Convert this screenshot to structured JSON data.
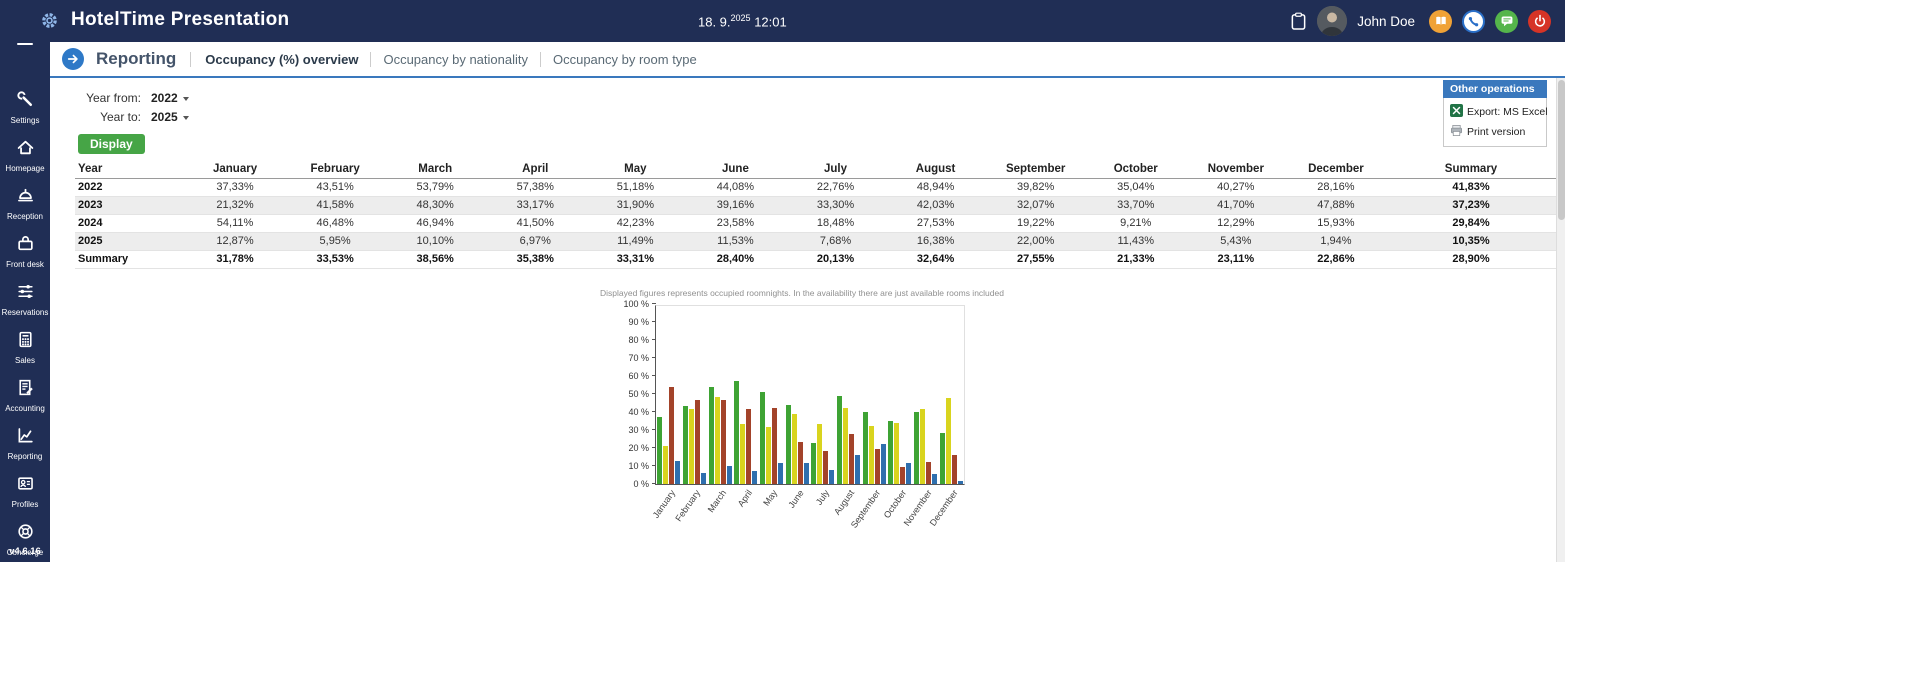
{
  "header": {
    "app_title": "HotelTime Presentation",
    "date_prefix": "18. 9.",
    "date_year": "2025",
    "time": "12:01",
    "user": "John Doe"
  },
  "sidebar": {
    "version": "v4.6.16",
    "items": [
      {
        "label": "Settings",
        "icon": "wrench-icon"
      },
      {
        "label": "Homepage",
        "icon": "house-icon"
      },
      {
        "label": "Reception",
        "icon": "bell-icon"
      },
      {
        "label": "Front desk",
        "icon": "desk-icon"
      },
      {
        "label": "Reservations",
        "icon": "sliders-icon"
      },
      {
        "label": "Sales",
        "icon": "calculator-icon"
      },
      {
        "label": "Accounting",
        "icon": "invoice-icon"
      },
      {
        "label": "Reporting",
        "icon": "chart-icon"
      },
      {
        "label": "Profiles",
        "icon": "profile-card-icon"
      },
      {
        "label": "Concierge",
        "icon": "lifebuoy-icon"
      }
    ]
  },
  "nav": {
    "title": "Reporting",
    "tabs": [
      {
        "label": "Occupancy (%) overview",
        "active": true
      },
      {
        "label": "Occupancy by nationality",
        "active": false
      },
      {
        "label": "Occupancy by room type",
        "active": false
      }
    ]
  },
  "filters": {
    "year_from_label": "Year from:",
    "year_from_value": "2022",
    "year_to_label": "Year to:",
    "year_to_value": "2025",
    "display_button": "Display"
  },
  "operations": {
    "title": "Other operations",
    "export_excel": "Export: MS Excel",
    "print": "Print version"
  },
  "table": {
    "columns": [
      "Year",
      "January",
      "February",
      "March",
      "April",
      "May",
      "June",
      "July",
      "August",
      "September",
      "October",
      "November",
      "December",
      "Summary"
    ],
    "rows": [
      {
        "year": "2022",
        "shaded": false,
        "values": [
          "37,33%",
          "43,51%",
          "53,79%",
          "57,38%",
          "51,18%",
          "44,08%",
          "22,76%",
          "48,94%",
          "39,82%",
          "35,04%",
          "40,27%",
          "28,16%"
        ],
        "summary": "41,83%"
      },
      {
        "year": "2023",
        "shaded": true,
        "values": [
          "21,32%",
          "41,58%",
          "48,30%",
          "33,17%",
          "31,90%",
          "39,16%",
          "33,30%",
          "42,03%",
          "32,07%",
          "33,70%",
          "41,70%",
          "47,88%"
        ],
        "summary": "37,23%"
      },
      {
        "year": "2024",
        "shaded": false,
        "values": [
          "54,11%",
          "46,48%",
          "46,94%",
          "41,50%",
          "42,23%",
          "23,58%",
          "18,48%",
          "27,53%",
          "19,22%",
          "9,21%",
          "12,29%",
          "15,93%"
        ],
        "summary": "29,84%"
      },
      {
        "year": "2025",
        "shaded": true,
        "values": [
          "12,87%",
          "5,95%",
          "10,10%",
          "6,97%",
          "11,49%",
          "11,53%",
          "7,68%",
          "16,38%",
          "22,00%",
          "11,43%",
          "5,43%",
          "1,94%"
        ],
        "summary": "10,35%"
      }
    ],
    "summary_row": {
      "label": "Summary",
      "values": [
        "31,78%",
        "33,53%",
        "38,56%",
        "35,38%",
        "33,31%",
        "28,40%",
        "20,13%",
        "32,64%",
        "27,55%",
        "21,33%",
        "23,11%",
        "22,86%"
      ],
      "summary": "28,90%"
    }
  },
  "chart_note": "Displayed figures represents occupied roomnights. In the availability there are just available rooms included",
  "chart_data": {
    "type": "bar",
    "title": "",
    "categories": [
      "January",
      "February",
      "March",
      "April",
      "May",
      "June",
      "July",
      "August",
      "September",
      "October",
      "November",
      "December"
    ],
    "series": [
      {
        "name": "2022",
        "color": "#3ea334",
        "values": [
          37.33,
          43.51,
          53.79,
          57.38,
          51.18,
          44.08,
          22.76,
          48.94,
          39.82,
          35.04,
          40.27,
          28.16
        ]
      },
      {
        "name": "2023",
        "color": "#d9d41e",
        "values": [
          21.32,
          41.58,
          48.3,
          33.17,
          31.9,
          39.16,
          33.3,
          42.03,
          32.07,
          33.7,
          41.7,
          47.88
        ]
      },
      {
        "name": "2024",
        "color": "#a3432a",
        "values": [
          54.11,
          46.48,
          46.94,
          41.5,
          42.23,
          23.58,
          18.48,
          27.53,
          19.22,
          9.21,
          12.29,
          15.93
        ]
      },
      {
        "name": "2025",
        "color": "#2f6fae",
        "values": [
          12.87,
          5.95,
          10.1,
          6.97,
          11.49,
          11.53,
          7.68,
          16.38,
          22.0,
          11.43,
          5.43,
          1.94
        ]
      }
    ],
    "xlabel": "",
    "ylabel": "",
    "ylim": [
      0,
      100
    ],
    "ytick_step": 10,
    "ytick_suffix": " %",
    "grid": false,
    "legend": "none"
  }
}
